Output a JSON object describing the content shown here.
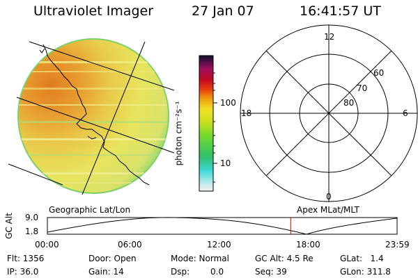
{
  "header": {
    "title": "Ultraviolet Imager",
    "date": "27 Jan 07",
    "time": "16:41:57 UT"
  },
  "colorbar": {
    "label": "photon cm⁻²s⁻¹",
    "ticks": [
      "100",
      "10"
    ]
  },
  "polar": {
    "hours": {
      "top": "12",
      "left": "18",
      "right": "6",
      "bottom": "0"
    },
    "lat_rings": [
      "80",
      "70",
      "60"
    ]
  },
  "panel_labels": {
    "left": "Geographic Lat/Lon",
    "right": "Apex MLat/MLT"
  },
  "alt_plot": {
    "ylabel": "GC Alt",
    "yticks": [
      "9.0",
      "1.8"
    ],
    "xticks": [
      "00:00",
      "06:00",
      "12:00",
      "18:00",
      "23:59"
    ],
    "current_marker_hours": 16.7,
    "marker_color": "#cc0000"
  },
  "info": {
    "flt": "Flt: 1356",
    "ip": "IP: 36.0",
    "door": "Door: Open",
    "gain": "Gain: 14",
    "mode": "Mode: Normal",
    "dsp_label": "Dsp:",
    "dsp_value": "0.0",
    "gc_alt": "GC Alt: 4.5 Re",
    "seq": "Seq: 39",
    "glat": "GLat:   1.4",
    "glon": "GLon: 311.8"
  },
  "colors": {
    "background": "#ffffff",
    "image_dominant": "#e6e060",
    "image_bright": "#e08a20",
    "image_edge": "#8ed86a"
  }
}
